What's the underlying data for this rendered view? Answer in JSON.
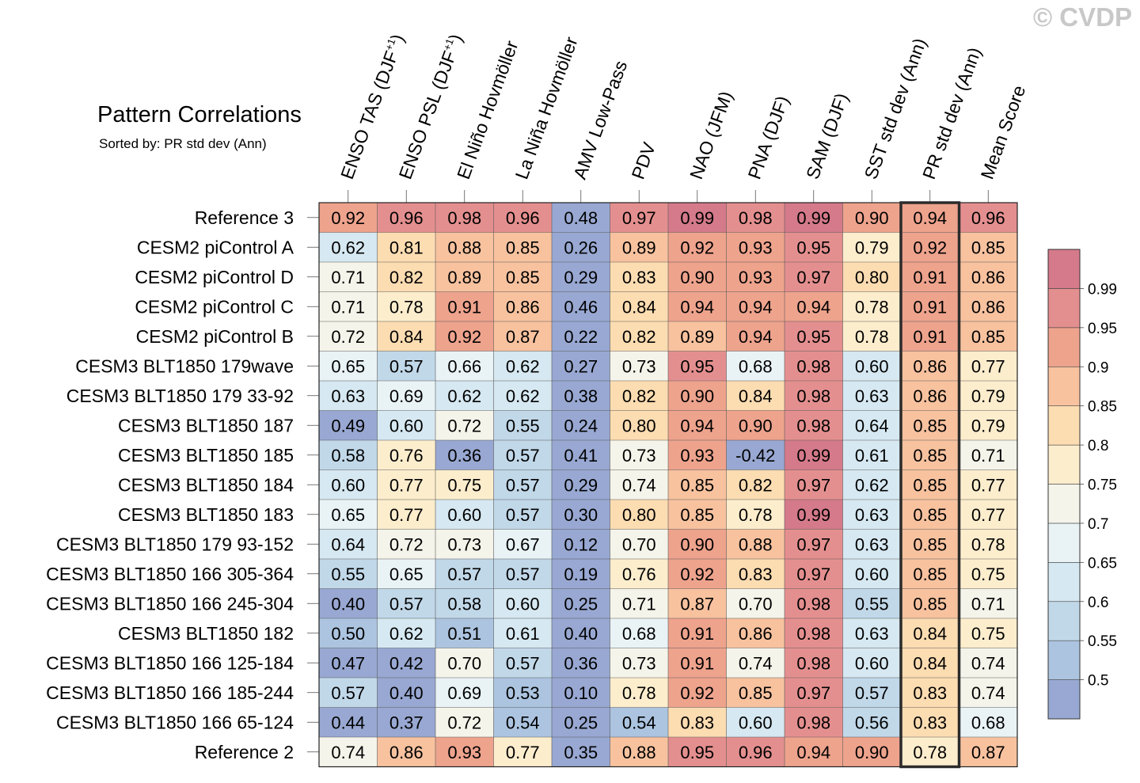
{
  "watermark": "© CVDP",
  "chart_data": {
    "type": "heatmap",
    "title": "Pattern Correlations",
    "subtitle": "Sorted by: PR std dev (Ann)",
    "highlight_column": "PR std dev (Ann)",
    "columns": [
      {
        "base": "ENSO TAS (DJF",
        "sup": "+1",
        "tail": ")"
      },
      {
        "base": "ENSO PSL (DJF",
        "sup": "+1",
        "tail": ")"
      },
      {
        "base": "El Niño Hovmöller",
        "sup": "",
        "tail": ""
      },
      {
        "base": "La Niña Hovmöller",
        "sup": "",
        "tail": ""
      },
      {
        "base": "AMV Low-Pass",
        "sup": "",
        "tail": ""
      },
      {
        "base": "PDV",
        "sup": "",
        "tail": ""
      },
      {
        "base": "NAO (JFM)",
        "sup": "",
        "tail": ""
      },
      {
        "base": "PNA (DJF)",
        "sup": "",
        "tail": ""
      },
      {
        "base": "SAM (DJF)",
        "sup": "",
        "tail": ""
      },
      {
        "base": "SST std dev (Ann)",
        "sup": "",
        "tail": ""
      },
      {
        "base": "PR std dev (Ann)",
        "sup": "",
        "tail": ""
      },
      {
        "base": "Mean Score",
        "sup": "",
        "tail": ""
      }
    ],
    "rows": [
      {
        "label": "Reference 3",
        "values": [
          "0.92",
          "0.96",
          "0.98",
          "0.96",
          "0.48",
          "0.97",
          "0.99",
          "0.98",
          "0.99",
          "0.90",
          "0.94",
          "0.96"
        ]
      },
      {
        "label": "CESM2 piControl A",
        "values": [
          "0.62",
          "0.81",
          "0.88",
          "0.85",
          "0.26",
          "0.89",
          "0.92",
          "0.93",
          "0.95",
          "0.79",
          "0.92",
          "0.85"
        ]
      },
      {
        "label": "CESM2 piControl D",
        "values": [
          "0.71",
          "0.82",
          "0.89",
          "0.85",
          "0.29",
          "0.83",
          "0.90",
          "0.93",
          "0.97",
          "0.80",
          "0.91",
          "0.86"
        ]
      },
      {
        "label": "CESM2 piControl C",
        "values": [
          "0.71",
          "0.78",
          "0.91",
          "0.86",
          "0.46",
          "0.84",
          "0.94",
          "0.94",
          "0.94",
          "0.78",
          "0.91",
          "0.86"
        ]
      },
      {
        "label": "CESM2 piControl B",
        "values": [
          "0.72",
          "0.84",
          "0.92",
          "0.87",
          "0.22",
          "0.82",
          "0.89",
          "0.94",
          "0.95",
          "0.78",
          "0.91",
          "0.85"
        ]
      },
      {
        "label": "CESM3 BLT1850 179wave",
        "values": [
          "0.65",
          "0.57",
          "0.66",
          "0.62",
          "0.27",
          "0.73",
          "0.95",
          "0.68",
          "0.98",
          "0.60",
          "0.86",
          "0.77"
        ]
      },
      {
        "label": "CESM3 BLT1850 179 33-92",
        "values": [
          "0.63",
          "0.69",
          "0.62",
          "0.62",
          "0.38",
          "0.82",
          "0.90",
          "0.84",
          "0.98",
          "0.63",
          "0.86",
          "0.79"
        ]
      },
      {
        "label": "CESM3 BLT1850 187",
        "values": [
          "0.49",
          "0.60",
          "0.72",
          "0.55",
          "0.24",
          "0.80",
          "0.94",
          "0.90",
          "0.98",
          "0.64",
          "0.85",
          "0.79"
        ]
      },
      {
        "label": "CESM3 BLT1850 185",
        "values": [
          "0.58",
          "0.76",
          "0.36",
          "0.57",
          "0.41",
          "0.73",
          "0.93",
          "-0.42",
          "0.99",
          "0.61",
          "0.85",
          "0.71"
        ]
      },
      {
        "label": "CESM3 BLT1850 184",
        "values": [
          "0.60",
          "0.77",
          "0.75",
          "0.57",
          "0.29",
          "0.74",
          "0.85",
          "0.82",
          "0.97",
          "0.62",
          "0.85",
          "0.77"
        ]
      },
      {
        "label": "CESM3 BLT1850 183",
        "values": [
          "0.65",
          "0.77",
          "0.60",
          "0.57",
          "0.30",
          "0.80",
          "0.85",
          "0.78",
          "0.99",
          "0.63",
          "0.85",
          "0.77"
        ]
      },
      {
        "label": "CESM3 BLT1850 179 93-152",
        "values": [
          "0.64",
          "0.72",
          "0.73",
          "0.67",
          "0.12",
          "0.70",
          "0.90",
          "0.88",
          "0.97",
          "0.63",
          "0.85",
          "0.78"
        ]
      },
      {
        "label": "CESM3 BLT1850 166 305-364",
        "values": [
          "0.55",
          "0.65",
          "0.57",
          "0.57",
          "0.19",
          "0.76",
          "0.92",
          "0.83",
          "0.97",
          "0.60",
          "0.85",
          "0.75"
        ]
      },
      {
        "label": "CESM3 BLT1850 166 245-304",
        "values": [
          "0.40",
          "0.57",
          "0.58",
          "0.60",
          "0.25",
          "0.71",
          "0.87",
          "0.70",
          "0.98",
          "0.55",
          "0.85",
          "0.71"
        ]
      },
      {
        "label": "CESM3 BLT1850 182",
        "values": [
          "0.50",
          "0.62",
          "0.51",
          "0.61",
          "0.40",
          "0.68",
          "0.91",
          "0.86",
          "0.98",
          "0.63",
          "0.84",
          "0.75"
        ]
      },
      {
        "label": "CESM3 BLT1850 166 125-184",
        "values": [
          "0.47",
          "0.42",
          "0.70",
          "0.57",
          "0.36",
          "0.73",
          "0.91",
          "0.74",
          "0.98",
          "0.60",
          "0.84",
          "0.74"
        ]
      },
      {
        "label": "CESM3 BLT1850 166 185-244",
        "values": [
          "0.57",
          "0.40",
          "0.69",
          "0.53",
          "0.10",
          "0.78",
          "0.92",
          "0.85",
          "0.97",
          "0.57",
          "0.83",
          "0.74"
        ]
      },
      {
        "label": "CESM3 BLT1850 166 65-124",
        "values": [
          "0.44",
          "0.37",
          "0.72",
          "0.54",
          "0.25",
          "0.54",
          "0.83",
          "0.60",
          "0.98",
          "0.56",
          "0.83",
          "0.68"
        ]
      },
      {
        "label": "Reference 2",
        "values": [
          "0.74",
          "0.86",
          "0.93",
          "0.77",
          "0.35",
          "0.88",
          "0.95",
          "0.96",
          "0.94",
          "0.90",
          "0.78",
          "0.87"
        ]
      }
    ],
    "colorbar": {
      "labels": [
        "0.99",
        "0.95",
        "0.9",
        "0.85",
        "0.8",
        "0.75",
        "0.7",
        "0.65",
        "0.6",
        "0.55",
        "0.5"
      ],
      "thresholds": [
        0.5,
        0.55,
        0.6,
        0.65,
        0.7,
        0.75,
        0.8,
        0.85,
        0.9,
        0.95,
        0.99
      ],
      "colors_low_to_high": [
        "#98a8d2",
        "#acc4e0",
        "#c1d8e9",
        "#d6e8f1",
        "#e9f3f6",
        "#f5f4ea",
        "#fcedcd",
        "#fcdcb1",
        "#f8c29f",
        "#eea38d",
        "#e48f8f",
        "#d47a8a"
      ]
    }
  }
}
